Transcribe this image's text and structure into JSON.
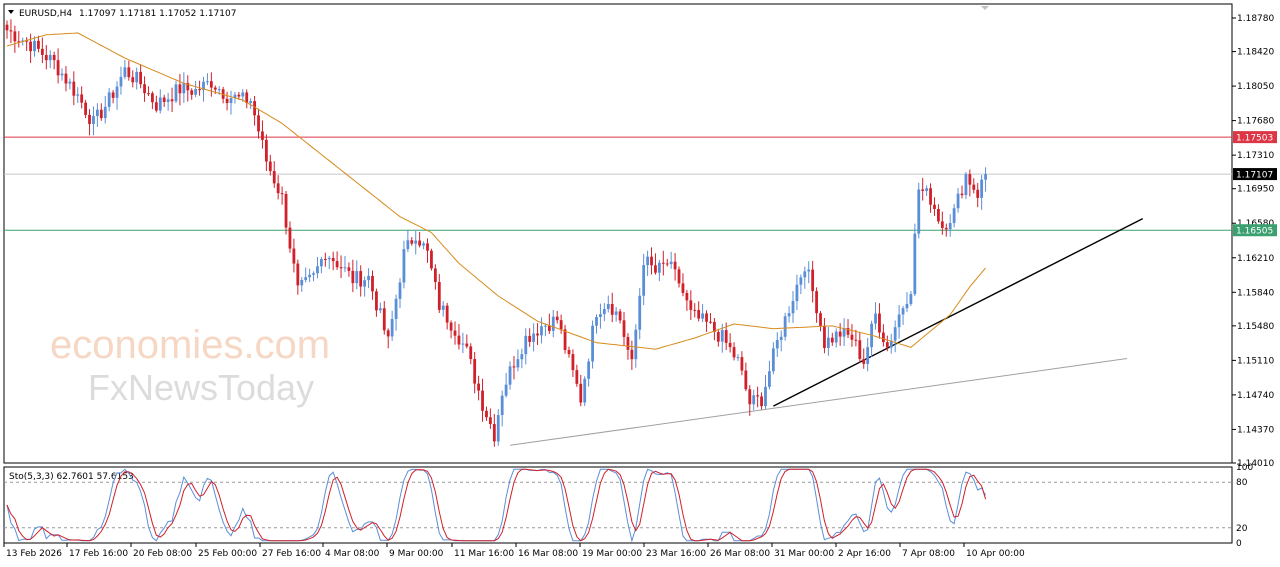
{
  "header": {
    "symbol": "EURUSD,H4",
    "ohlc": "1.17097 1.17181 1.17052 1.17107"
  },
  "watermark": {
    "line1": "economies.com",
    "line2": "FxNewsToday"
  },
  "colors": {
    "bull": "#5a8fd8",
    "bear": "#d0202a",
    "ma": "#d68b1c",
    "resistance": "#dc3545",
    "support": "#3aa070",
    "current": "#c8c8c8",
    "trend": "#000000",
    "trend2": "#a0a0a0",
    "stoch_main": "#5a8fd8",
    "stoch_signal": "#d0202a"
  },
  "chart_data": {
    "type": "candlestick",
    "ylim": [
      1.1401,
      1.1893
    ],
    "price_ticks": [
      "1.18780",
      "1.18420",
      "1.18050",
      "1.17680",
      "1.17310",
      "1.16950",
      "1.16580",
      "1.16210",
      "1.15840",
      "1.15480",
      "1.15110",
      "1.14740",
      "1.14370",
      "1.14010"
    ],
    "current_price": "1.17107",
    "levels": [
      {
        "name": "resistance",
        "value": 1.17503,
        "label": "1.17503"
      },
      {
        "name": "support",
        "value": 1.16505,
        "label": "1.16505"
      }
    ],
    "x_labels": [
      "13 Feb 2026",
      "17 Feb 16:00",
      "20 Feb 08:00",
      "25 Feb 00:00",
      "27 Feb 16:00",
      "4 Mar 08:00",
      "9 Mar 00:00",
      "11 Mar 16:00",
      "16 Mar 08:00",
      "19 Mar 00:00",
      "23 Mar 16:00",
      "26 Mar 08:00",
      "31 Mar 00:00",
      "2 Apr 16:00",
      "7 Apr 08:00",
      "10 Apr 00:00"
    ],
    "anchors": [
      {
        "i": 0,
        "p": 1.1865
      },
      {
        "i": 6,
        "p": 1.185
      },
      {
        "i": 12,
        "p": 1.183
      },
      {
        "i": 18,
        "p": 1.1795
      },
      {
        "i": 22,
        "p": 1.1765
      },
      {
        "i": 26,
        "p": 1.179
      },
      {
        "i": 30,
        "p": 1.1822
      },
      {
        "i": 34,
        "p": 1.1808
      },
      {
        "i": 38,
        "p": 1.1785
      },
      {
        "i": 44,
        "p": 1.1802
      },
      {
        "i": 48,
        "p": 1.18
      },
      {
        "i": 52,
        "p": 1.181
      },
      {
        "i": 56,
        "p": 1.1795
      },
      {
        "i": 60,
        "p": 1.179
      },
      {
        "i": 62,
        "p": 1.179
      },
      {
        "i": 66,
        "p": 1.1725
      },
      {
        "i": 70,
        "p": 1.1685
      },
      {
        "i": 74,
        "p": 1.1585
      },
      {
        "i": 78,
        "p": 1.16
      },
      {
        "i": 81,
        "p": 1.1628
      },
      {
        "i": 85,
        "p": 1.1612
      },
      {
        "i": 88,
        "p": 1.1598
      },
      {
        "i": 92,
        "p": 1.16
      },
      {
        "i": 97,
        "p": 1.153
      },
      {
        "i": 101,
        "p": 1.1625
      },
      {
        "i": 104,
        "p": 1.1648
      },
      {
        "i": 107,
        "p": 1.1625
      },
      {
        "i": 110,
        "p": 1.157
      },
      {
        "i": 114,
        "p": 1.1545
      },
      {
        "i": 117,
        "p": 1.152
      },
      {
        "i": 121,
        "p": 1.1465
      },
      {
        "i": 124,
        "p": 1.1432
      },
      {
        "i": 126,
        "p": 1.1478
      },
      {
        "i": 129,
        "p": 1.151
      },
      {
        "i": 132,
        "p": 1.1535
      },
      {
        "i": 136,
        "p": 1.1548
      },
      {
        "i": 140,
        "p": 1.1555
      },
      {
        "i": 143,
        "p": 1.151
      },
      {
        "i": 146,
        "p": 1.147
      },
      {
        "i": 150,
        "p": 1.1565
      },
      {
        "i": 153,
        "p": 1.1575
      },
      {
        "i": 156,
        "p": 1.1555
      },
      {
        "i": 159,
        "p": 1.1505
      },
      {
        "i": 162,
        "p": 1.162
      },
      {
        "i": 165,
        "p": 1.1605
      },
      {
        "i": 168,
        "p": 1.1615
      },
      {
        "i": 171,
        "p": 1.1595
      },
      {
        "i": 174,
        "p": 1.156
      },
      {
        "i": 178,
        "p": 1.155
      },
      {
        "i": 182,
        "p": 1.1535
      },
      {
        "i": 186,
        "p": 1.151
      },
      {
        "i": 189,
        "p": 1.1465
      },
      {
        "i": 192,
        "p": 1.147
      },
      {
        "i": 196,
        "p": 1.153
      },
      {
        "i": 200,
        "p": 1.158
      },
      {
        "i": 203,
        "p": 1.1615
      },
      {
        "i": 206,
        "p": 1.157
      },
      {
        "i": 208,
        "p": 1.153
      },
      {
        "i": 212,
        "p": 1.154
      },
      {
        "i": 215,
        "p": 1.1535
      },
      {
        "i": 218,
        "p": 1.151
      },
      {
        "i": 221,
        "p": 1.156
      },
      {
        "i": 224,
        "p": 1.1525
      },
      {
        "i": 227,
        "p": 1.156
      },
      {
        "i": 230,
        "p": 1.159
      },
      {
        "i": 232,
        "p": 1.1695
      },
      {
        "i": 235,
        "p": 1.1685
      },
      {
        "i": 238,
        "p": 1.1655
      },
      {
        "i": 241,
        "p": 1.167
      },
      {
        "i": 244,
        "p": 1.171
      },
      {
        "i": 247,
        "p": 1.169
      },
      {
        "i": 249,
        "p": 1.1711
      }
    ],
    "ma_anchors": [
      {
        "i": 0,
        "p": 1.1848
      },
      {
        "i": 10,
        "p": 1.186
      },
      {
        "i": 18,
        "p": 1.1862
      },
      {
        "i": 30,
        "p": 1.1835
      },
      {
        "i": 45,
        "p": 1.1808
      },
      {
        "i": 60,
        "p": 1.179
      },
      {
        "i": 70,
        "p": 1.1765
      },
      {
        "i": 85,
        "p": 1.1715
      },
      {
        "i": 100,
        "p": 1.1665
      },
      {
        "i": 108,
        "p": 1.1648
      },
      {
        "i": 115,
        "p": 1.1615
      },
      {
        "i": 125,
        "p": 1.158
      },
      {
        "i": 135,
        "p": 1.1553
      },
      {
        "i": 150,
        "p": 1.153
      },
      {
        "i": 165,
        "p": 1.1523
      },
      {
        "i": 175,
        "p": 1.1535
      },
      {
        "i": 185,
        "p": 1.155
      },
      {
        "i": 195,
        "p": 1.1545
      },
      {
        "i": 210,
        "p": 1.1548
      },
      {
        "i": 220,
        "p": 1.1538
      },
      {
        "i": 230,
        "p": 1.1525
      },
      {
        "i": 240,
        "p": 1.156
      },
      {
        "i": 245,
        "p": 1.159
      },
      {
        "i": 249,
        "p": 1.161
      }
    ],
    "trendlines": [
      {
        "name": "rising-trendline",
        "from": {
          "i": 195,
          "p": 1.1462
        },
        "to": {
          "i": 289,
          "p": 1.1663
        }
      },
      {
        "name": "long-trendline",
        "from": {
          "i": 128,
          "p": 1.142
        },
        "to": {
          "i": 285,
          "p": 1.1513
        }
      }
    ],
    "stochastic": {
      "label": "Sto(5,3,3) 62.7601 57.6153",
      "ylim": [
        0,
        100
      ],
      "ticks": [
        "100",
        "80",
        "20",
        "0"
      ],
      "levels": [
        80,
        20
      ]
    }
  }
}
